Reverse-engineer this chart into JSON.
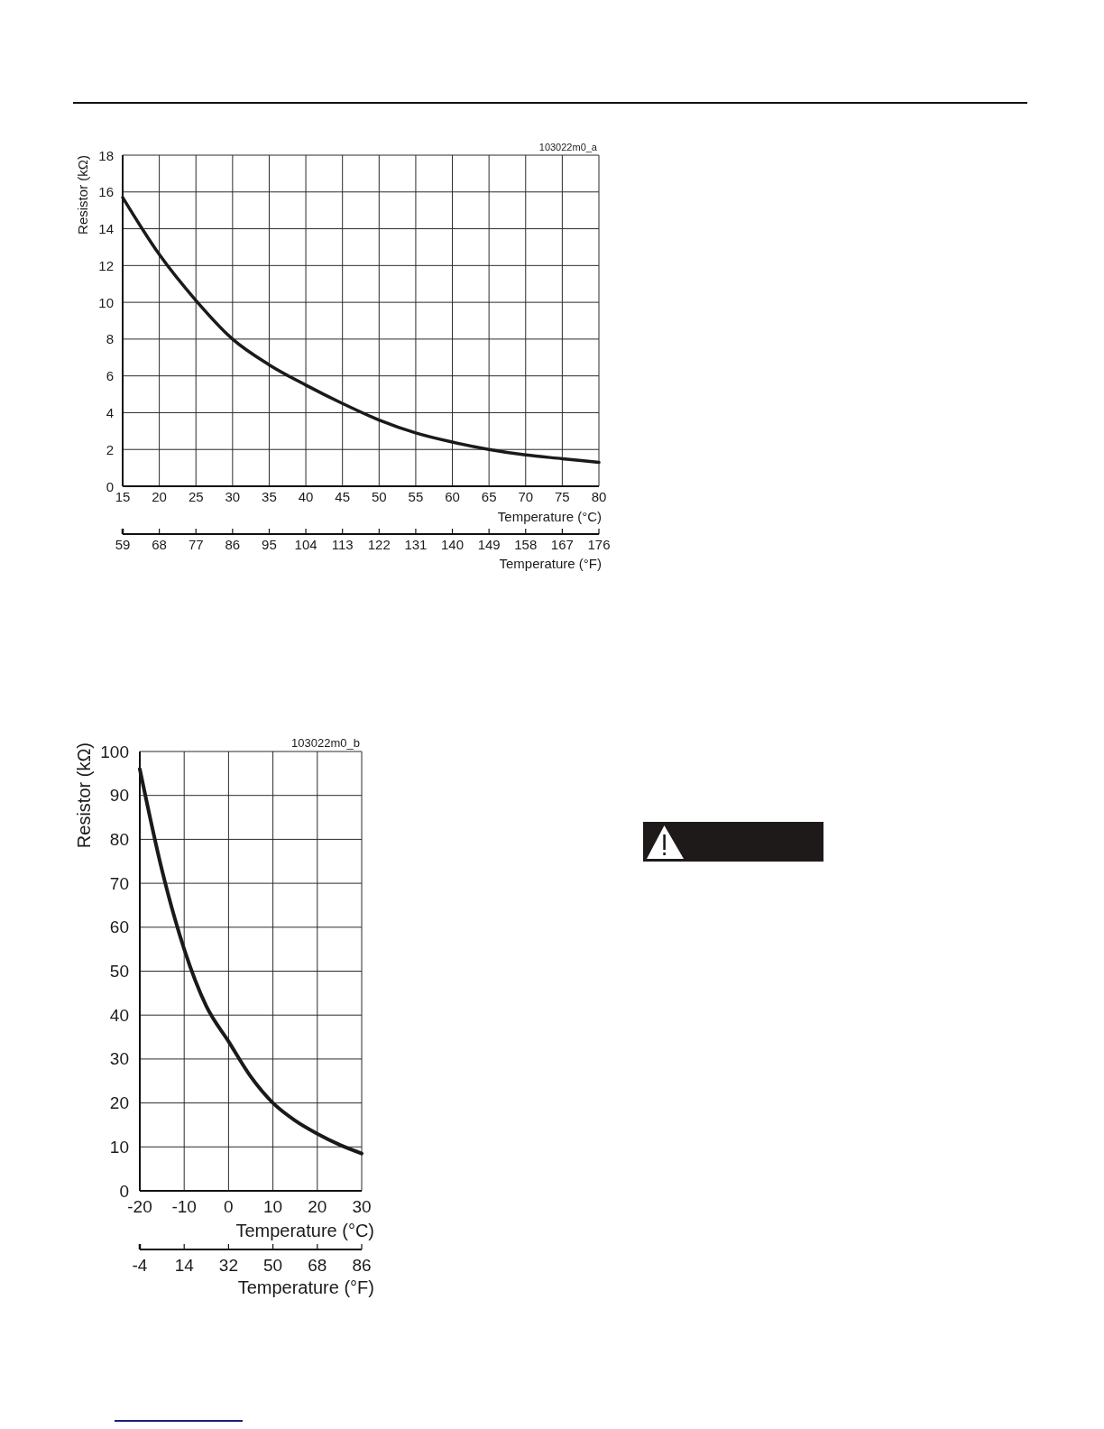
{
  "chart_data": [
    {
      "type": "line",
      "annotations": [
        "103022m0_a"
      ],
      "xlabel": "Temperature (°C)",
      "ylabel": "Resistor (kΩ)",
      "x2label": "Temperature (°F)",
      "x": [
        15,
        20,
        25,
        30,
        35,
        40,
        45,
        50,
        55,
        60,
        65,
        70,
        75,
        80
      ],
      "values": [
        15.7,
        12.6,
        10.1,
        8.0,
        6.6,
        5.5,
        4.5,
        3.6,
        2.9,
        2.4,
        2.0,
        1.7,
        1.5,
        1.3
      ],
      "color": "#1a1a1a",
      "xlim": [
        15,
        80
      ],
      "xticks": [
        15,
        20,
        25,
        30,
        35,
        40,
        45,
        50,
        55,
        60,
        65,
        70,
        75,
        80
      ],
      "x2lim": [
        59,
        176
      ],
      "x2ticks": [
        59,
        68,
        77,
        86,
        95,
        104,
        113,
        122,
        131,
        140,
        149,
        158,
        167,
        176
      ],
      "ylim": [
        0,
        18
      ],
      "yticks": [
        0,
        2,
        4,
        6,
        8,
        10,
        12,
        14,
        16,
        18
      ],
      "grid": true
    },
    {
      "type": "line",
      "annotations": [
        "103022m0_b"
      ],
      "xlabel": "Temperature (°C)",
      "ylabel": "Resistor (kΩ)",
      "x2label": "Temperature (°F)",
      "x": [
        -20,
        -15,
        -10,
        -5,
        0,
        5,
        10,
        15,
        20,
        25,
        30
      ],
      "values": [
        96,
        73,
        55,
        42,
        34,
        26,
        20,
        16,
        13,
        10.5,
        8.5
      ],
      "color": "#1a1a1a",
      "xlim": [
        -20,
        30
      ],
      "xticks": [
        -20,
        -10,
        0,
        10,
        20,
        30
      ],
      "x2lim": [
        -4,
        86
      ],
      "x2ticks": [
        -4,
        14,
        32,
        50,
        68,
        86
      ],
      "ylim": [
        0,
        100
      ],
      "yticks": [
        0,
        10,
        20,
        30,
        40,
        50,
        60,
        70,
        80,
        90,
        100
      ],
      "grid": true
    }
  ]
}
